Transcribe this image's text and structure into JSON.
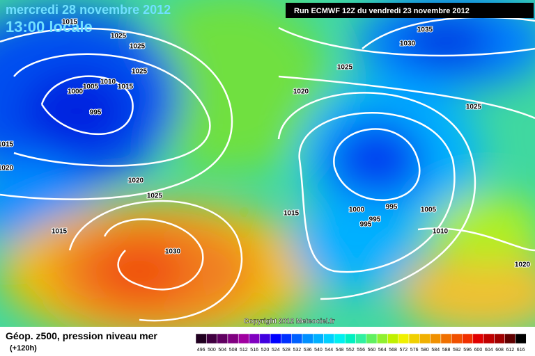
{
  "header": {
    "date": "mercredi 28 novembre 2012",
    "time": "13:00 locale",
    "run": "Run ECMWF 12Z du vendredi 23 novembre 2012"
  },
  "isobars": [
    1015,
    1025,
    1025,
    1025,
    1010,
    1005,
    1015,
    1000,
    995,
    1015,
    1020,
    1020,
    1025,
    1015,
    1030,
    1020,
    1025,
    1035,
    1030,
    1025,
    1015,
    1000,
    995,
    995,
    995,
    1005,
    1010,
    1020
  ],
  "copyright": "Copyright 2012 Meteociel.fr",
  "caption": {
    "title": "Géop. z500, pression niveau mer",
    "lead": "(+120h)"
  },
  "legend": {
    "values": [
      496,
      500,
      504,
      508,
      512,
      516,
      520,
      524,
      528,
      532,
      536,
      540,
      544,
      548,
      552,
      556,
      560,
      564,
      568,
      572,
      576,
      580,
      584,
      588,
      592,
      596,
      600,
      604,
      608,
      612,
      616
    ],
    "colors": [
      "#200020",
      "#400040",
      "#600060",
      "#800080",
      "#a000a0",
      "#8000c0",
      "#4000e0",
      "#0000ff",
      "#0030ff",
      "#0060ff",
      "#0090ff",
      "#00b0ff",
      "#00d0ff",
      "#00f0f0",
      "#00f0c0",
      "#30f0a0",
      "#60f060",
      "#90f030",
      "#c0f000",
      "#f0f000",
      "#f0d000",
      "#f0b000",
      "#f09000",
      "#f07000",
      "#f05000",
      "#f03000",
      "#e00000",
      "#c00000",
      "#a00000",
      "#600000",
      "#000000"
    ]
  }
}
